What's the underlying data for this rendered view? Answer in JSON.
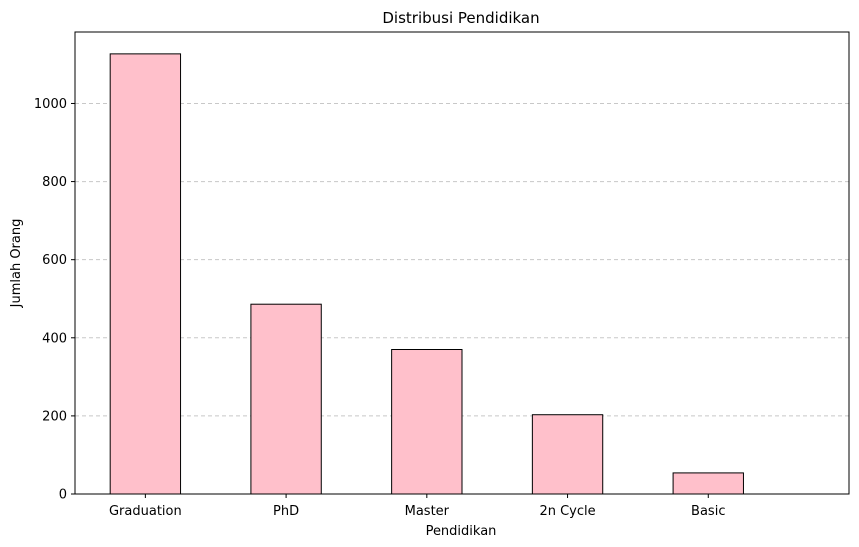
{
  "chart_data": {
    "type": "bar",
    "title": "Distribusi Pendidikan",
    "xlabel": "Pendidikan",
    "ylabel": "Jumlah Orang",
    "categories": [
      "Graduation",
      "PhD",
      "Master",
      "2n Cycle",
      "Basic"
    ],
    "values": [
      1127,
      486,
      370,
      203,
      54
    ],
    "ylim": [
      0,
      1183
    ],
    "yticks": [
      0,
      200,
      400,
      600,
      800,
      1000
    ],
    "ytick_labels": [
      "0",
      "200",
      "400",
      "600",
      "800",
      "1000"
    ],
    "grid": "y-dashed",
    "legend": "none",
    "colors": {
      "bar_fill": "#ffc0cb",
      "bar_edge": "#000000",
      "grid": "#c8c8c8",
      "axis": "#000000"
    }
  }
}
